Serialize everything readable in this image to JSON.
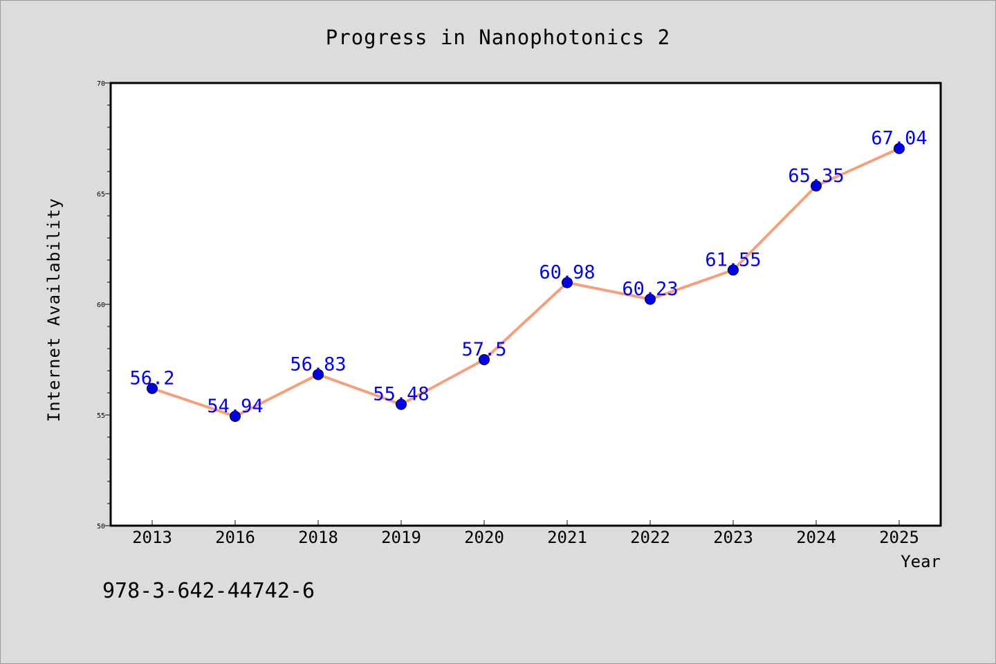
{
  "chart_data": {
    "type": "line",
    "title": "Progress in Nanophotonics 2",
    "xlabel": "Year",
    "ylabel": "Internet Availability",
    "categories": [
      "2013",
      "2016",
      "2018",
      "2019",
      "2020",
      "2021",
      "2022",
      "2023",
      "2024",
      "2025"
    ],
    "series": [
      {
        "values": [
          56.2,
          54.94,
          56.83,
          55.48,
          57.5,
          60.98,
          60.23,
          61.55,
          65.35,
          67.04
        ],
        "data_labels": [
          "56.2",
          "54.94",
          "56.83",
          "55.48",
          "57.5",
          "60.98",
          "60.23",
          "61.55",
          "65.35",
          "67.04"
        ],
        "line_color": "#f4a07e",
        "marker_color": "#0000ee",
        "label_color": "#0000ee"
      }
    ],
    "ylim": [
      50,
      70
    ],
    "yticks": [
      50,
      55,
      60,
      65,
      70
    ],
    "ytick_labels": [
      "50",
      "55",
      "60",
      "65",
      "70"
    ],
    "minor_ytick_step": 1,
    "grid": false,
    "legend": "none"
  },
  "annotation": {
    "isbn": "978-3-642-44742-6"
  },
  "colors": {
    "background": "#dcdcdc",
    "plot_background": "#ffffff",
    "axis": "#000000"
  }
}
